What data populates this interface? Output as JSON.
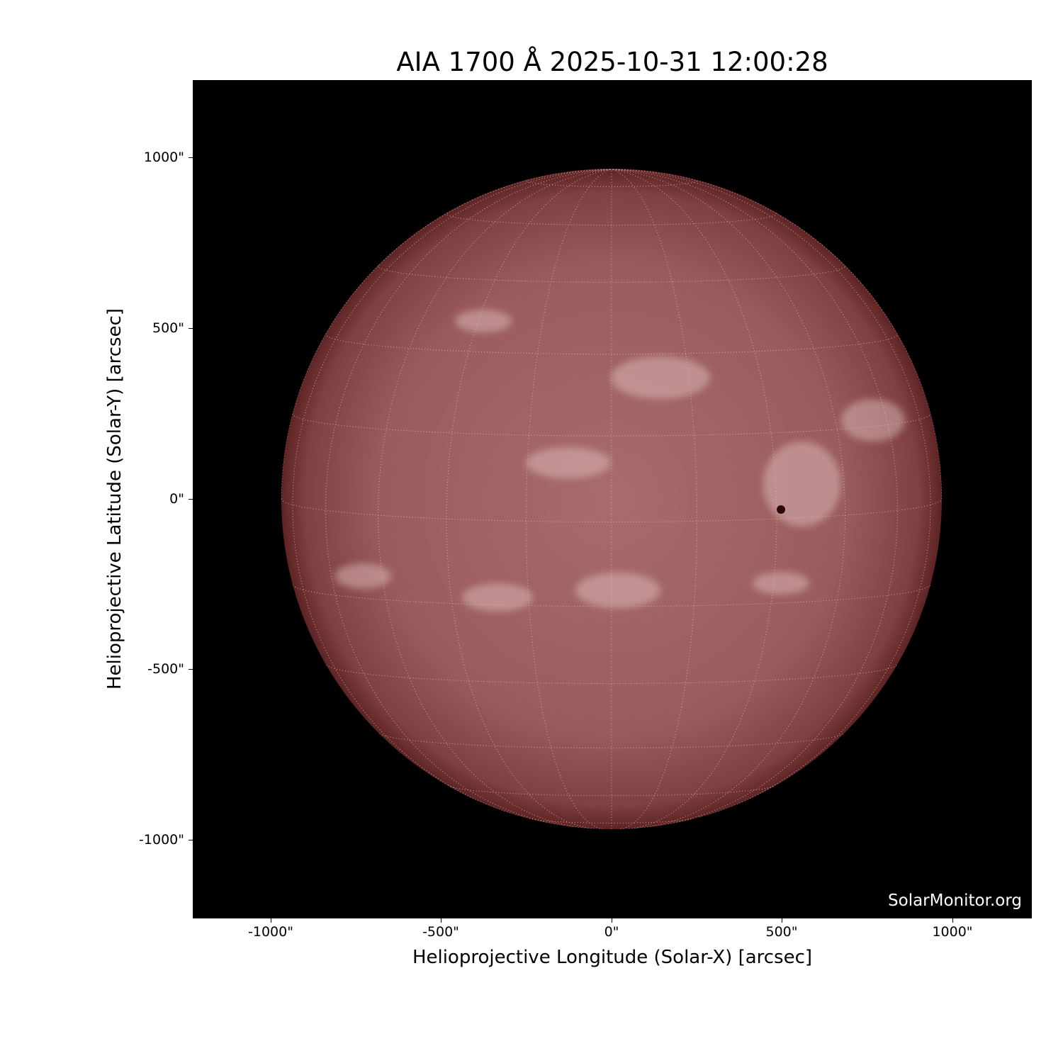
{
  "title": "AIA 1700 Å 2025-10-31 12:00:28",
  "xlabel": "Helioprojective Longitude (Solar-X) [arcsec]",
  "ylabel": "Helioprojective Latitude (Solar-Y) [arcsec]",
  "x_ticks": [
    "-1000\"",
    "-500\"",
    "0\"",
    "500\"",
    "1000\""
  ],
  "y_ticks": [
    "1000\"",
    "500\"",
    "0\"",
    "-500\"",
    "-1000\""
  ],
  "watermark": "SolarMonitor.org",
  "colors": {
    "disk_center": "#a86c6c",
    "disk_limb": "#5e2424",
    "background": "#000000",
    "plage": "#e8c8c8"
  }
}
